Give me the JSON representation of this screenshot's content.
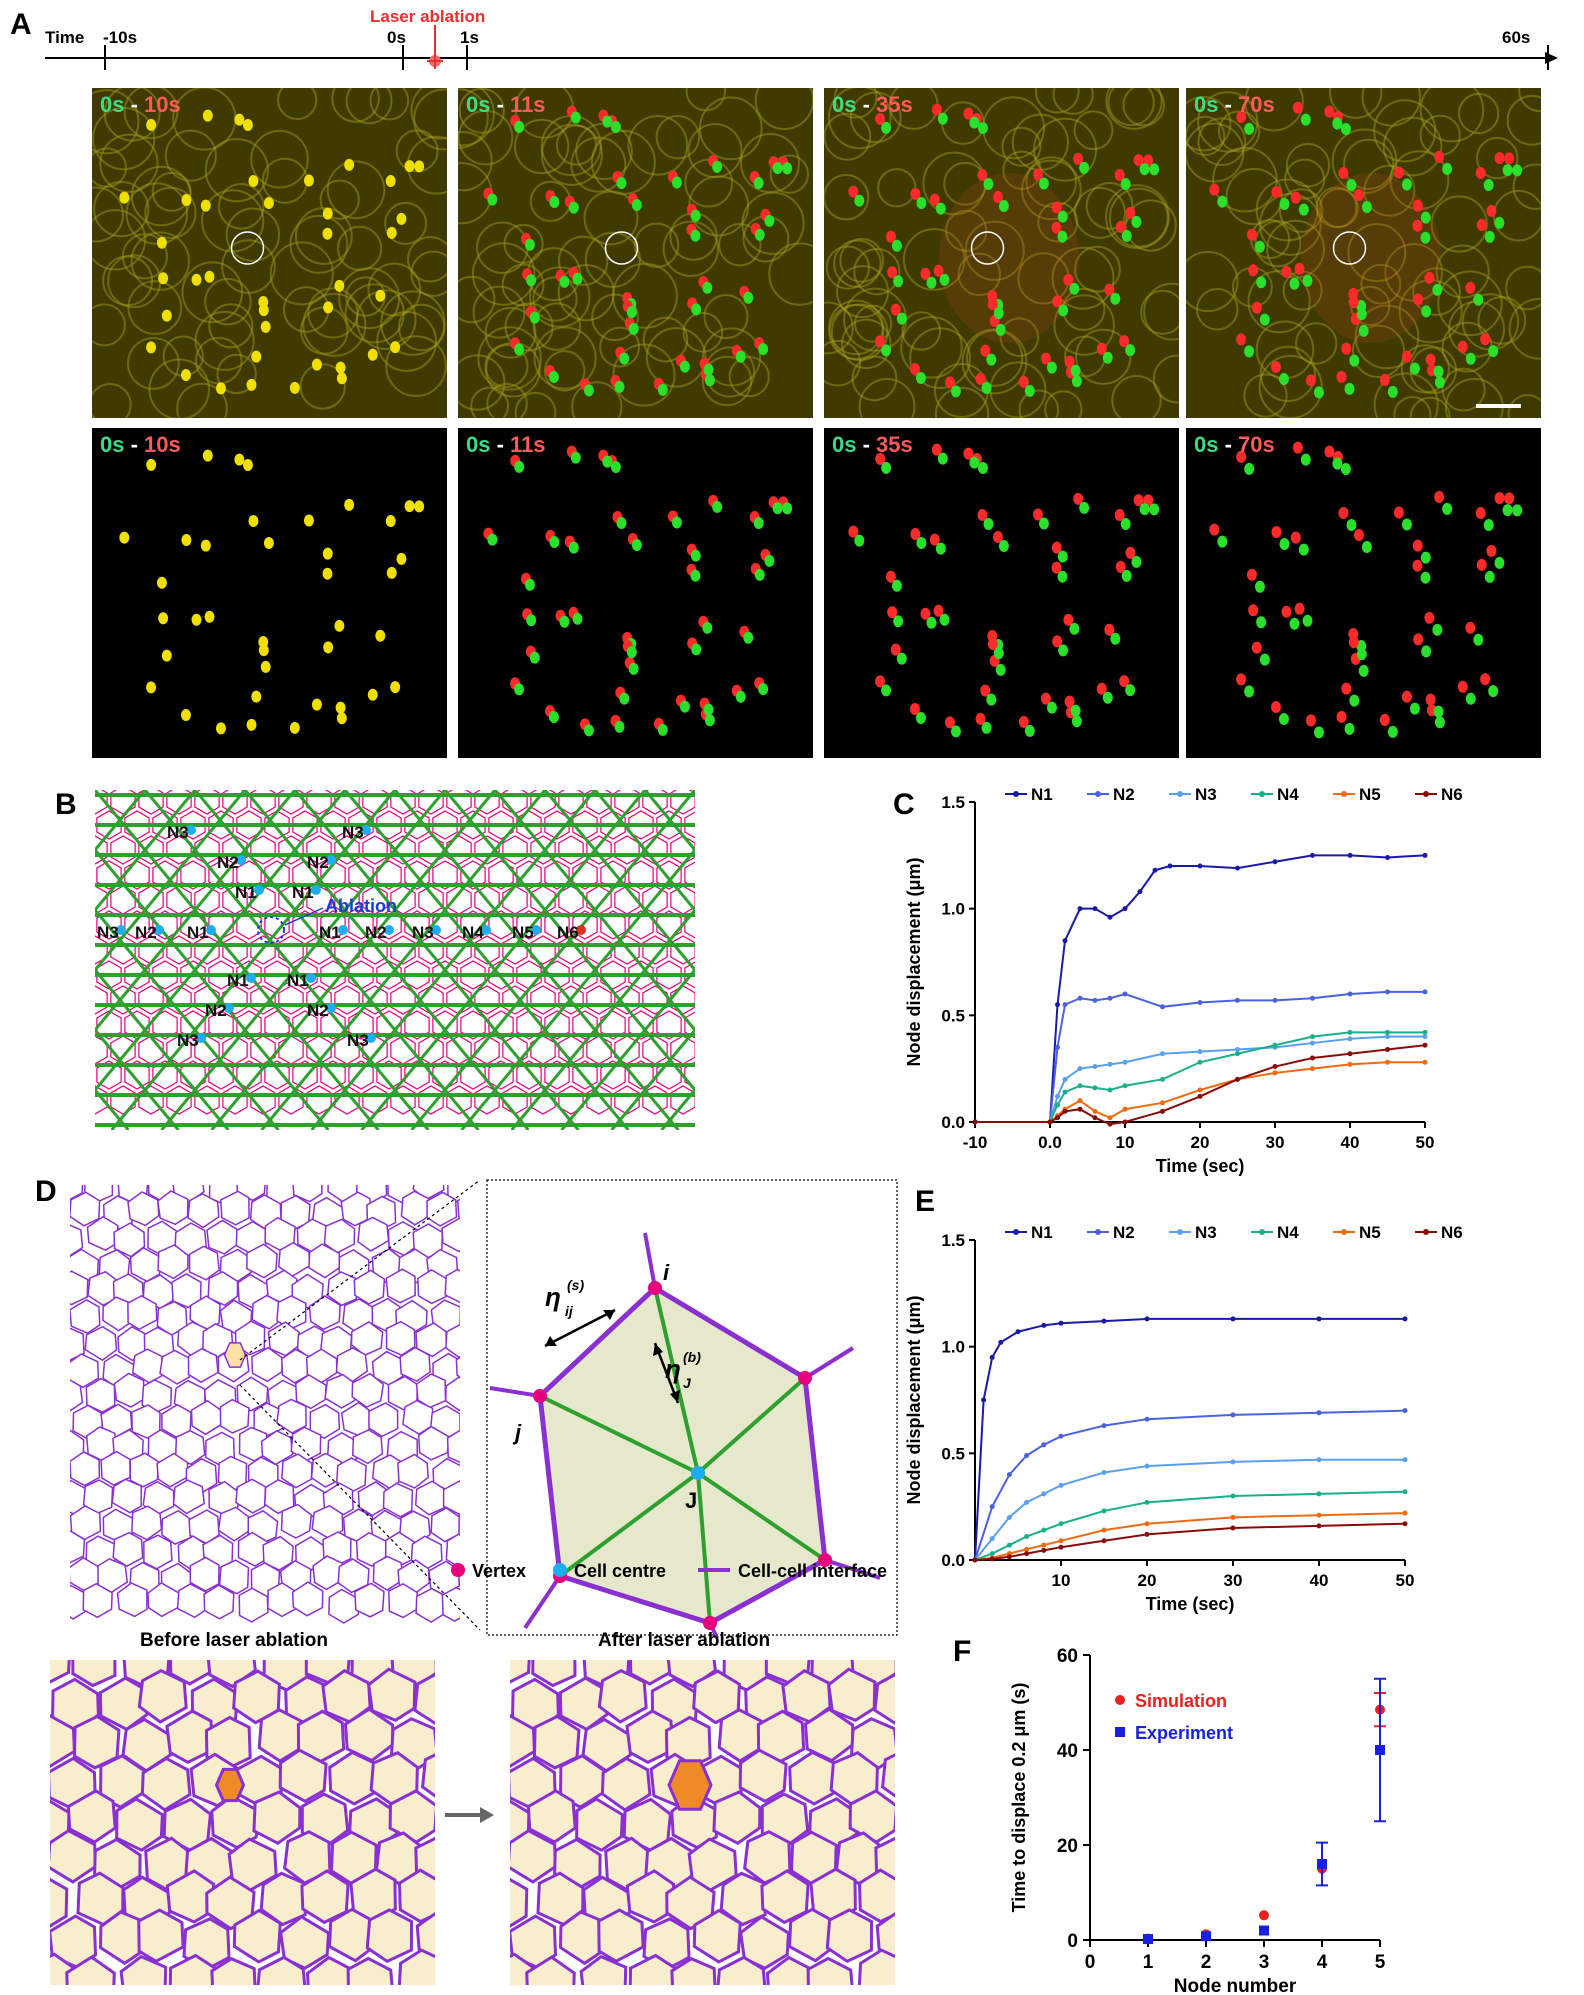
{
  "panel_labels": {
    "a": "A",
    "b": "B",
    "c": "C",
    "d": "D",
    "e": "E",
    "f": "F"
  },
  "timeline": {
    "label": "Time",
    "ticks": [
      "-10s",
      "0s",
      "1s",
      "60s"
    ],
    "event": "Laser ablation"
  },
  "frames": [
    {
      "start": "0s",
      "sep": "-",
      "end": "10s"
    },
    {
      "start": "0s",
      "sep": "-",
      "end": "11s"
    },
    {
      "start": "0s",
      "sep": "-",
      "end": "35s"
    },
    {
      "start": "0s",
      "sep": "-",
      "end": "70s"
    }
  ],
  "lattice": {
    "ablation_label": "Ablation",
    "nodes": [
      "N3",
      "N3",
      "N2",
      "N2",
      "N1",
      "N1",
      "N3",
      "N2",
      "N1",
      "N1",
      "N2",
      "N3",
      "N4",
      "N5",
      "N6",
      "N1",
      "N1",
      "N2",
      "N2",
      "N3",
      "N3"
    ]
  },
  "colors": {
    "N1": "#1a1aa8",
    "N2": "#4a62e0",
    "N3": "#5aa0f0",
    "N4": "#18b08a",
    "N5": "#f06a10",
    "N6": "#8a0a0a",
    "vertex": "#e6007e",
    "centre": "#1eaef0",
    "interface": "#8a30d0",
    "green": "#2ea02e"
  },
  "chart_data": [
    {
      "type": "line",
      "title": "",
      "xlabel": "Time (sec)",
      "ylabel": "Node displacement (μm)",
      "xlim": [
        -10,
        50
      ],
      "ylim": [
        0,
        1.5
      ],
      "x_ticks": [
        "-10",
        "0.0",
        "10",
        "20",
        "30",
        "40",
        "50"
      ],
      "y_ticks": [
        "0.0",
        "0.5",
        "1.0",
        "1.5"
      ],
      "legend": "top",
      "series": [
        {
          "name": "N1",
          "x": [
            -10,
            0,
            1,
            2,
            4,
            6,
            8,
            10,
            12,
            14,
            16,
            20,
            25,
            30,
            35,
            40,
            45,
            50
          ],
          "values": [
            0,
            0,
            0.55,
            0.85,
            1.0,
            1.0,
            0.96,
            1.0,
            1.08,
            1.18,
            1.2,
            1.2,
            1.19,
            1.22,
            1.25,
            1.25,
            1.24,
            1.25
          ]
        },
        {
          "name": "N2",
          "x": [
            -10,
            0,
            1,
            2,
            4,
            6,
            8,
            10,
            15,
            20,
            25,
            30,
            35,
            40,
            45,
            50
          ],
          "values": [
            0,
            0,
            0.35,
            0.55,
            0.58,
            0.57,
            0.58,
            0.6,
            0.54,
            0.56,
            0.57,
            0.57,
            0.58,
            0.6,
            0.61,
            0.61
          ]
        },
        {
          "name": "N3",
          "x": [
            -10,
            0,
            1,
            2,
            4,
            6,
            8,
            10,
            15,
            20,
            25,
            30,
            35,
            40,
            45,
            50
          ],
          "values": [
            0,
            0,
            0.12,
            0.2,
            0.25,
            0.26,
            0.27,
            0.28,
            0.32,
            0.33,
            0.34,
            0.35,
            0.37,
            0.39,
            0.4,
            0.4
          ]
        },
        {
          "name": "N4",
          "x": [
            -10,
            0,
            1,
            2,
            4,
            6,
            8,
            10,
            15,
            20,
            25,
            30,
            35,
            40,
            45,
            50
          ],
          "values": [
            0,
            0,
            0.08,
            0.14,
            0.17,
            0.16,
            0.15,
            0.17,
            0.2,
            0.28,
            0.32,
            0.36,
            0.4,
            0.42,
            0.42,
            0.42
          ]
        },
        {
          "name": "N5",
          "x": [
            -10,
            0,
            1,
            2,
            4,
            6,
            8,
            10,
            15,
            20,
            25,
            30,
            35,
            40,
            45,
            50
          ],
          "values": [
            0,
            0,
            0.03,
            0.06,
            0.1,
            0.05,
            0.02,
            0.06,
            0.09,
            0.15,
            0.2,
            0.23,
            0.25,
            0.27,
            0.28,
            0.28
          ]
        },
        {
          "name": "N6",
          "x": [
            -10,
            0,
            1,
            2,
            4,
            6,
            8,
            10,
            15,
            20,
            25,
            30,
            35,
            40,
            45,
            50
          ],
          "values": [
            0,
            0,
            0.02,
            0.05,
            0.06,
            0.02,
            -0.01,
            0.0,
            0.05,
            0.12,
            0.2,
            0.26,
            0.3,
            0.32,
            0.34,
            0.36
          ]
        }
      ]
    },
    {
      "type": "line",
      "title": "",
      "xlabel": "Time (sec)",
      "ylabel": "Node displacement (μm)",
      "xlim": [
        0,
        50
      ],
      "ylim": [
        0,
        1.5
      ],
      "x_ticks": [
        "10",
        "20",
        "30",
        "40",
        "50"
      ],
      "y_ticks": [
        "0.0",
        "0.5",
        "1.0",
        "1.5"
      ],
      "legend": "top",
      "series": [
        {
          "name": "N1",
          "x": [
            0,
            1,
            2,
            3,
            5,
            8,
            10,
            15,
            20,
            30,
            40,
            50
          ],
          "values": [
            0,
            0.75,
            0.95,
            1.02,
            1.07,
            1.1,
            1.11,
            1.12,
            1.13,
            1.13,
            1.13,
            1.13
          ]
        },
        {
          "name": "N2",
          "x": [
            0,
            2,
            4,
            6,
            8,
            10,
            15,
            20,
            30,
            40,
            50
          ],
          "values": [
            0,
            0.25,
            0.4,
            0.49,
            0.54,
            0.58,
            0.63,
            0.66,
            0.68,
            0.69,
            0.7
          ]
        },
        {
          "name": "N3",
          "x": [
            0,
            2,
            4,
            6,
            8,
            10,
            15,
            20,
            30,
            40,
            50
          ],
          "values": [
            0,
            0.1,
            0.2,
            0.27,
            0.31,
            0.35,
            0.41,
            0.44,
            0.46,
            0.47,
            0.47
          ]
        },
        {
          "name": "N4",
          "x": [
            0,
            2,
            4,
            6,
            8,
            10,
            15,
            20,
            30,
            40,
            50
          ],
          "values": [
            0,
            0.03,
            0.07,
            0.11,
            0.14,
            0.17,
            0.23,
            0.27,
            0.3,
            0.31,
            0.32
          ]
        },
        {
          "name": "N5",
          "x": [
            0,
            2,
            4,
            6,
            8,
            10,
            15,
            20,
            30,
            40,
            50
          ],
          "values": [
            0,
            0.01,
            0.03,
            0.05,
            0.07,
            0.09,
            0.14,
            0.17,
            0.2,
            0.21,
            0.22
          ]
        },
        {
          "name": "N6",
          "x": [
            0,
            2,
            4,
            6,
            8,
            10,
            15,
            20,
            30,
            40,
            50
          ],
          "values": [
            0,
            0.005,
            0.015,
            0.03,
            0.045,
            0.06,
            0.09,
            0.12,
            0.15,
            0.16,
            0.17
          ]
        }
      ]
    },
    {
      "type": "scatter",
      "title": "",
      "xlabel": "Node number",
      "ylabel": "Time to displace 0.2 μm (s)",
      "xlim": [
        0,
        5
      ],
      "ylim": [
        0,
        60
      ],
      "x_ticks": [
        "0",
        "1",
        "2",
        "3",
        "4",
        "5"
      ],
      "y_ticks": [
        "0",
        "20",
        "40",
        "60"
      ],
      "legend": "top-left",
      "series": [
        {
          "name": "Simulation",
          "x": [
            1,
            2,
            3,
            4,
            5
          ],
          "values": [
            0.3,
            1.2,
            5.2,
            15,
            48.5
          ],
          "err": [
            0,
            0,
            0,
            0,
            3.5
          ]
        },
        {
          "name": "Experiment",
          "x": [
            1,
            2,
            3,
            4,
            5
          ],
          "values": [
            0.2,
            0.8,
            2.0,
            16,
            40
          ],
          "err": [
            0,
            0,
            0,
            4.5,
            15
          ]
        }
      ]
    }
  ],
  "model": {
    "labels": {
      "i": "i",
      "j": "j",
      "J": "J",
      "eta_s": "η",
      "eta_s_sub": "ij",
      "eta_s_sup": "(s)",
      "eta_b": "η",
      "eta_b_sub": "J",
      "eta_b_sup": "(b)"
    },
    "legend": [
      "Vertex",
      "Cell centre",
      "Cell-cell interface"
    ],
    "before": "Before laser ablation",
    "after": "After laser ablation"
  }
}
